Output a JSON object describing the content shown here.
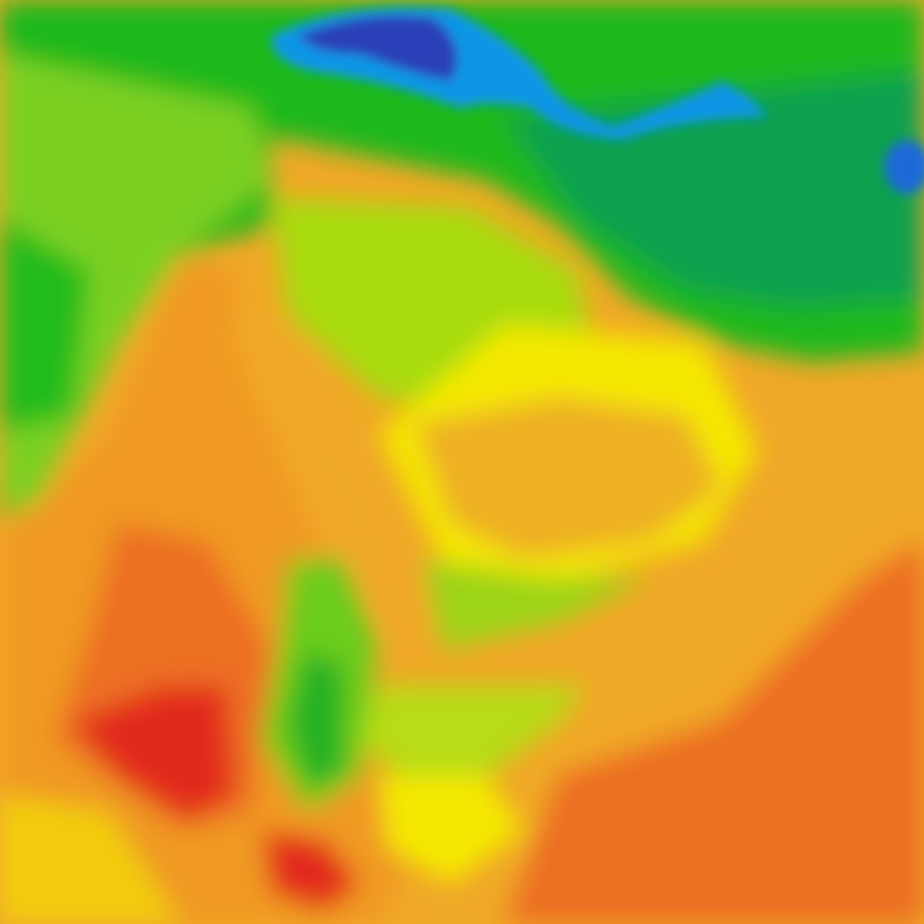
{
  "map": {
    "layer": "temperature-heatmap",
    "palette": {
      "cold_dark_blue": "#2a3fb8",
      "cold_blue": "#0a96e6",
      "teal_green": "#11a050",
      "green": "#1cb81c",
      "yellow_green": "#a8dc10",
      "yellow": "#f4e800",
      "light_orange": "#f0a828",
      "orange": "#ec7020",
      "red": "#e22a1e"
    }
  }
}
